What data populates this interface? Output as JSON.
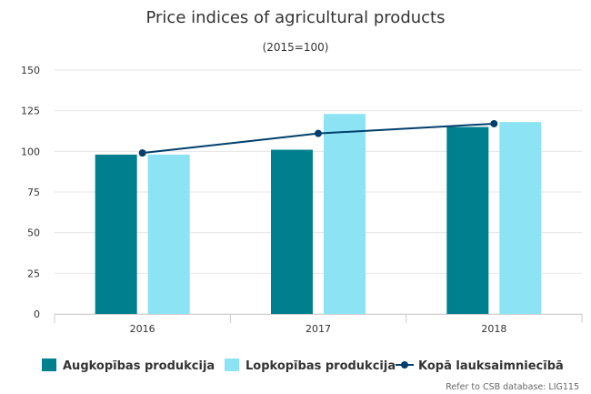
{
  "chart_data": {
    "type": "bar",
    "title": "Price indices of agricultural products",
    "subtitle": "(2015=100)",
    "categories": [
      "2016",
      "2017",
      "2018"
    ],
    "series": [
      {
        "name": "Augkopības produkcija",
        "type": "bar",
        "color": "#00808F",
        "values": [
          98,
          101,
          115
        ]
      },
      {
        "name": "Lopkopības produkcija",
        "type": "bar",
        "color": "#8BE3F4",
        "values": [
          98,
          123,
          118
        ]
      },
      {
        "name": "Kopā lauksaimniecībā",
        "type": "line",
        "color": "#003F6B",
        "values": [
          99,
          111,
          117
        ]
      }
    ],
    "ylim": [
      0,
      150
    ],
    "yticks": [
      "0",
      "25",
      "50",
      "75",
      "100",
      "125",
      "150"
    ],
    "grid": true,
    "legend": "bottom-left"
  },
  "credit": "Refer to CSB database: LIG115"
}
